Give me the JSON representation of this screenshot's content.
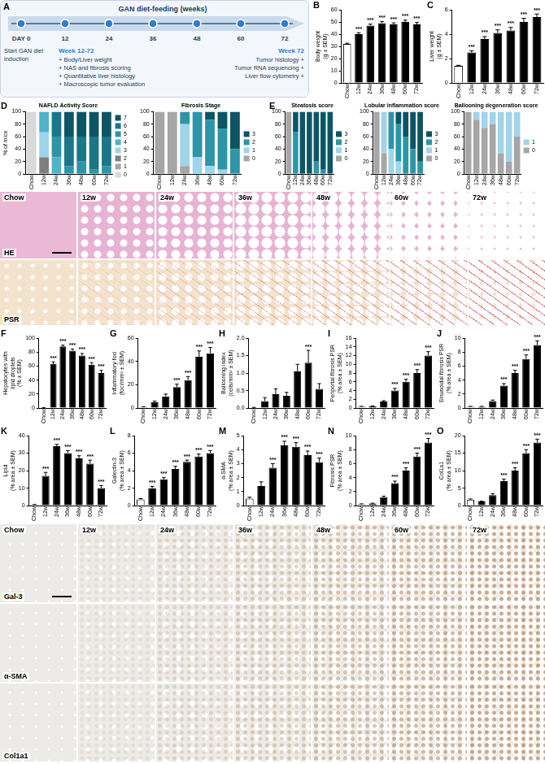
{
  "chart_data": [
    {
      "panel": "B",
      "type": "bar",
      "y_label": [
        "Body weight",
        "(g ± SEM)"
      ],
      "categories": [
        "Chow",
        "12w",
        "24w",
        "36w",
        "48w",
        "60w",
        "72w"
      ],
      "values": [
        32,
        40,
        47,
        49,
        48,
        50,
        48
      ],
      "errors": [
        0.6,
        1.2,
        1.2,
        1.4,
        1.3,
        1.5,
        1.6
      ],
      "significance": [
        null,
        "***",
        "***",
        "***",
        "***",
        "***",
        "***"
      ],
      "colors": [
        "#ffffff",
        "#000000",
        "#000000",
        "#000000",
        "#000000",
        "#000000",
        "#000000"
      ],
      "ylim": [
        0,
        60
      ],
      "yticks": [
        0,
        10,
        20,
        30,
        40,
        50,
        60
      ],
      "grid": false
    },
    {
      "panel": "C",
      "type": "bar",
      "y_label": [
        "Liver weight",
        "(g ± SEM)"
      ],
      "categories": [
        "Chow",
        "12w",
        "24w",
        "36w",
        "48w",
        "60w",
        "72w"
      ],
      "values": [
        1.4,
        2.5,
        3.6,
        4.1,
        4.3,
        5.0,
        5.4
      ],
      "errors": [
        0.05,
        0.15,
        0.2,
        0.25,
        0.25,
        0.3,
        0.25
      ],
      "significance": [
        null,
        "***",
        "***",
        "***",
        "***",
        "***",
        "***"
      ],
      "colors": [
        "#ffffff",
        "#000000",
        "#000000",
        "#000000",
        "#000000",
        "#000000",
        "#000000"
      ],
      "ylim": [
        0,
        6
      ],
      "yticks": [
        0,
        2,
        4,
        6
      ],
      "grid": false
    },
    {
      "panel": "D",
      "type": "bar",
      "stacked": true,
      "title": "NAFLD Activity Score",
      "y_label": "% of mice",
      "legend": "right",
      "grid": false,
      "categories": [
        "Chow",
        "12w",
        "24w",
        "36w",
        "48w",
        "60w",
        "72w"
      ],
      "ylim": [
        0,
        100
      ],
      "yticks": [
        0,
        20,
        40,
        60,
        80,
        100
      ],
      "series": [
        {
          "name": "0",
          "color": "#d9d9d9",
          "values": [
            100,
            0,
            0,
            0,
            0,
            0,
            0
          ]
        },
        {
          "name": "1",
          "color": "#a6a6a6",
          "values": [
            0,
            0,
            0,
            0,
            0,
            0,
            0
          ]
        },
        {
          "name": "2",
          "color": "#7f7f7f",
          "values": [
            0,
            27,
            0,
            0,
            0,
            0,
            0
          ]
        },
        {
          "name": "3",
          "color": "#9fd4ea",
          "values": [
            0,
            40,
            0,
            0,
            0,
            0,
            0
          ]
        },
        {
          "name": "4",
          "color": "#4fb3c9",
          "values": [
            0,
            33,
            27,
            0,
            0,
            0,
            0
          ]
        },
        {
          "name": "5",
          "color": "#2d95a8",
          "values": [
            0,
            0,
            33,
            13,
            20,
            7,
            13
          ]
        },
        {
          "name": "6",
          "color": "#1a7688",
          "values": [
            0,
            0,
            40,
            47,
            40,
            53,
            47
          ]
        },
        {
          "name": "7",
          "color": "#0d5566",
          "values": [
            0,
            0,
            0,
            40,
            40,
            40,
            40
          ]
        }
      ]
    },
    {
      "type": "bar",
      "stacked": true,
      "title": "Fibrosis Stage",
      "legend": "right",
      "grid": false,
      "categories": [
        "Chow",
        "12w",
        "24w",
        "36w",
        "48w",
        "60w",
        "72w"
      ],
      "ylim": [
        0,
        100
      ],
      "yticks": [
        0,
        20,
        40,
        60,
        80,
        100
      ],
      "series": [
        {
          "name": "0",
          "color": "#a6a6a6",
          "values": [
            100,
            100,
            13,
            0,
            0,
            0,
            0
          ]
        },
        {
          "name": "1",
          "color": "#9fd4ea",
          "values": [
            0,
            0,
            67,
            27,
            13,
            7,
            0
          ]
        },
        {
          "name": "2",
          "color": "#2d95a8",
          "values": [
            0,
            0,
            20,
            73,
            74,
            66,
            40
          ]
        },
        {
          "name": "3",
          "color": "#0d5566",
          "values": [
            0,
            0,
            0,
            0,
            13,
            27,
            60
          ]
        }
      ]
    },
    {
      "panel": "E",
      "type": "bar",
      "stacked": true,
      "title": "Steatosis score",
      "legend": "right",
      "grid": false,
      "categories": [
        "Chow",
        "12w",
        "24w",
        "36w",
        "48w",
        "60w",
        "72w"
      ],
      "ylim": [
        0,
        100
      ],
      "yticks": [
        0,
        20,
        40,
        60,
        80,
        100
      ],
      "series": [
        {
          "name": "0",
          "color": "#a6a6a6",
          "values": [
            100,
            0,
            0,
            0,
            0,
            0,
            0
          ]
        },
        {
          "name": "1",
          "color": "#9fd4ea",
          "values": [
            0,
            0,
            0,
            0,
            0,
            0,
            0
          ]
        },
        {
          "name": "2",
          "color": "#2d95a8",
          "values": [
            0,
            67,
            0,
            0,
            20,
            7,
            0
          ]
        },
        {
          "name": "3",
          "color": "#0d5566",
          "values": [
            0,
            33,
            100,
            100,
            80,
            93,
            100
          ]
        }
      ]
    },
    {
      "type": "bar",
      "stacked": true,
      "title": "Lobular inflammation score",
      "legend": "right",
      "grid": false,
      "categories": [
        "Chow",
        "12w",
        "24w",
        "36w",
        "48w",
        "60w",
        "72w"
      ],
      "ylim": [
        0,
        100
      ],
      "yticks": [
        0,
        20,
        40,
        60,
        80,
        100
      ],
      "series": [
        {
          "name": "0",
          "color": "#a6a6a6",
          "values": [
            100,
            33,
            0,
            0,
            0,
            0,
            0
          ]
        },
        {
          "name": "1",
          "color": "#9fd4ea",
          "values": [
            0,
            67,
            40,
            20,
            0,
            0,
            0
          ]
        },
        {
          "name": "2",
          "color": "#2d95a8",
          "values": [
            0,
            0,
            60,
            60,
            60,
            40,
            20
          ]
        },
        {
          "name": "3",
          "color": "#0d5566",
          "values": [
            0,
            0,
            0,
            20,
            40,
            60,
            80
          ]
        }
      ]
    },
    {
      "type": "bar",
      "stacked": true,
      "title": "Ballooning degeneration score",
      "legend": "right",
      "grid": false,
      "categories": [
        "Chow",
        "12w",
        "24w",
        "36w",
        "48w",
        "60w",
        "72w"
      ],
      "ylim": [
        0,
        100
      ],
      "yticks": [
        0,
        20,
        40,
        60,
        80,
        100
      ],
      "series": [
        {
          "name": "0",
          "color": "#a6a6a6",
          "values": [
            100,
            87,
            73,
            80,
            33,
            20,
            60
          ]
        },
        {
          "name": "1",
          "color": "#9fd4ea",
          "values": [
            0,
            13,
            27,
            20,
            67,
            80,
            40
          ]
        }
      ]
    },
    {
      "panel": "F",
      "type": "bar",
      "y_label": [
        "Hepatocytes with",
        "lipid droplets",
        "(% ± SEM)"
      ],
      "categories": [
        "Chow",
        "12w",
        "24w",
        "36w",
        "48w",
        "60w",
        "72w"
      ],
      "values": [
        0.5,
        63,
        88,
        82,
        75,
        62,
        50
      ],
      "errors": [
        0.3,
        3,
        2,
        2.5,
        3,
        3,
        4
      ],
      "significance": [
        null,
        "***",
        "***",
        "***",
        "***",
        "***",
        "***"
      ],
      "colors": [
        "#ffffff",
        "#000000",
        "#000000",
        "#000000",
        "#000000",
        "#000000",
        "#000000"
      ],
      "ylim": [
        0,
        100
      ],
      "yticks": [
        0,
        20,
        40,
        60,
        80,
        100
      ],
      "grid": false
    },
    {
      "panel": "G",
      "type": "bar",
      "y_label": [
        "Inflammatory foci",
        "(foci/mm² ± SEM)"
      ],
      "categories": [
        "Chow",
        "12w",
        "24w",
        "36w",
        "48w",
        "60w",
        "72w"
      ],
      "values": [
        1,
        5,
        10,
        18,
        24,
        44,
        47
      ],
      "errors": [
        0.3,
        1,
        2,
        2.5,
        3,
        5,
        5
      ],
      "significance": [
        null,
        null,
        null,
        "***",
        "***",
        "***",
        "***"
      ],
      "colors": [
        "#ffffff",
        "#000000",
        "#000000",
        "#000000",
        "#000000",
        "#000000",
        "#000000"
      ],
      "ylim": [
        0,
        60
      ],
      "yticks": [
        0,
        20,
        40,
        60
      ],
      "grid": false
    },
    {
      "panel": "H",
      "type": "bar",
      "y_label": [
        "Ballooning index",
        "(cells/mm² ± SEM)"
      ],
      "categories": [
        "Chow",
        "12w",
        "24w",
        "36w",
        "48w",
        "60w",
        "72w"
      ],
      "values": [
        0,
        0.2,
        0.4,
        0.35,
        1.05,
        1.3,
        0.55
      ],
      "errors": [
        0.02,
        0.1,
        0.15,
        0.1,
        0.2,
        0.35,
        0.15
      ],
      "significance": [
        null,
        null,
        null,
        null,
        null,
        "***",
        null
      ],
      "colors": [
        "#ffffff",
        "#000000",
        "#000000",
        "#000000",
        "#000000",
        "#000000",
        "#000000"
      ],
      "ylim": [
        0,
        2
      ],
      "yticks": [
        {
          "value": 0,
          "label": "0.0"
        },
        0.5,
        {
          "value": 1,
          "label": "1.0"
        },
        1.5,
        {
          "value": 2,
          "label": "2.0"
        }
      ],
      "grid": false
    },
    {
      "panel": "I",
      "type": "bar",
      "y_label": [
        "Periportal fibrosis PSR",
        "(% area ± SEM)"
      ],
      "categories": [
        "Chow",
        "12w",
        "24w",
        "36w",
        "48w",
        "60w",
        "72w"
      ],
      "values": [
        0.3,
        0.4,
        1.5,
        4,
        6,
        8,
        12
      ],
      "errors": [
        0.1,
        0.1,
        0.2,
        0.5,
        0.6,
        0.8,
        0.9
      ],
      "significance": [
        null,
        null,
        null,
        "***",
        "***",
        "***",
        "***"
      ],
      "colors": [
        "#ffffff",
        "#000000",
        "#000000",
        "#000000",
        "#000000",
        "#000000",
        "#000000"
      ],
      "ylim": [
        0,
        16
      ],
      "yticks": [
        0,
        2,
        4,
        6,
        8,
        10,
        12,
        14,
        16
      ],
      "grid": false
    },
    {
      "panel": "J",
      "type": "bar",
      "y_label": [
        "Sinusoidal fibrosis PSR",
        "(% area ± SEM)"
      ],
      "categories": [
        "Chow",
        "12w",
        "24w",
        "36w",
        "48w",
        "60w",
        "72w"
      ],
      "values": [
        0.2,
        0.2,
        1.0,
        3.2,
        5,
        7,
        9
      ],
      "errors": [
        0.05,
        0.05,
        0.15,
        0.3,
        0.4,
        0.6,
        0.6
      ],
      "significance": [
        null,
        null,
        null,
        "***",
        "***",
        "***",
        "***"
      ],
      "colors": [
        "#ffffff",
        "#000000",
        "#000000",
        "#000000",
        "#000000",
        "#000000",
        "#000000"
      ],
      "ylim": [
        0,
        10
      ],
      "yticks": [
        0,
        2,
        4,
        6,
        8,
        10
      ],
      "grid": false
    },
    {
      "panel": "K",
      "type": "bar",
      "y_label": [
        "Lipid",
        "(% area ± SEM)"
      ],
      "categories": [
        "Chow",
        "12w",
        "24w",
        "36w",
        "48w",
        "60w",
        "72w"
      ],
      "values": [
        0.5,
        17,
        34,
        30,
        27,
        24,
        10
      ],
      "errors": [
        0.2,
        2,
        1,
        1.5,
        1.5,
        2,
        1.5
      ],
      "significance": [
        null,
        "***",
        "***",
        "***",
        "***",
        "***",
        "***"
      ],
      "colors": [
        "#ffffff",
        "#000000",
        "#000000",
        "#000000",
        "#000000",
        "#000000",
        "#000000"
      ],
      "ylim": [
        0,
        40
      ],
      "yticks": [
        0,
        10,
        20,
        30,
        40
      ],
      "grid": false
    },
    {
      "panel": "L",
      "type": "bar",
      "y_label": [
        "Galectin-3",
        "(% area ± SEM)"
      ],
      "categories": [
        "Chow",
        "12w",
        "24w",
        "36w",
        "48w",
        "60w",
        "72w"
      ],
      "values": [
        0.7,
        2.0,
        3.0,
        4.2,
        5.0,
        5.6,
        6.0
      ],
      "errors": [
        0.1,
        0.2,
        0.2,
        0.3,
        0.2,
        0.3,
        0.3
      ],
      "significance": [
        null,
        "***",
        "***",
        "***",
        "***",
        "***",
        "***"
      ],
      "colors": [
        "#ffffff",
        "#000000",
        "#000000",
        "#000000",
        "#000000",
        "#000000",
        "#000000"
      ],
      "ylim": [
        0,
        8
      ],
      "yticks": [
        0,
        2,
        4,
        6,
        8
      ],
      "grid": false
    },
    {
      "panel": "M",
      "type": "bar",
      "y_label": [
        "α-SMA",
        "(% area ± SEM)"
      ],
      "categories": [
        "Chow",
        "12w",
        "24w",
        "36w",
        "48w",
        "60w",
        "72w"
      ],
      "values": [
        0.5,
        1.4,
        2.7,
        4.3,
        4.2,
        3.6,
        3.1
      ],
      "errors": [
        0.1,
        0.3,
        0.3,
        0.3,
        0.3,
        0.3,
        0.3
      ],
      "significance": [
        null,
        null,
        "***",
        "***",
        "***",
        "***",
        "***"
      ],
      "colors": [
        "#ffffff",
        "#000000",
        "#000000",
        "#000000",
        "#000000",
        "#000000",
        "#000000"
      ],
      "ylim": [
        0,
        5
      ],
      "yticks": [
        0,
        1,
        2,
        3,
        4,
        5
      ],
      "grid": false
    },
    {
      "panel": "N",
      "type": "bar",
      "y_label": [
        "Fibrosis PSR",
        "(% area ± SEM)"
      ],
      "categories": [
        "Chow",
        "12w",
        "24w",
        "36w",
        "48w",
        "60w",
        "72w"
      ],
      "values": [
        0.2,
        0.3,
        1.2,
        3.2,
        5,
        7,
        9
      ],
      "errors": [
        0.05,
        0.05,
        0.15,
        0.3,
        0.4,
        0.5,
        0.6
      ],
      "significance": [
        null,
        null,
        null,
        "***",
        "***",
        "***",
        "***"
      ],
      "colors": [
        "#ffffff",
        "#000000",
        "#000000",
        "#000000",
        "#000000",
        "#000000",
        "#000000"
      ],
      "ylim": [
        0,
        10
      ],
      "yticks": [
        0,
        2,
        4,
        6,
        8,
        10
      ],
      "grid": false
    },
    {
      "panel": "O",
      "type": "bar",
      "y_label": [
        "Col1a1",
        "(% area ± SEM)"
      ],
      "categories": [
        "Chow",
        "12w",
        "24w",
        "36w",
        "48w",
        "60w",
        "72w"
      ],
      "values": [
        1.7,
        1.2,
        3,
        7,
        10,
        15,
        18
      ],
      "errors": [
        0.2,
        0.1,
        0.4,
        0.6,
        0.8,
        1,
        1
      ],
      "significance": [
        null,
        null,
        null,
        "***",
        "***",
        "***",
        "***"
      ],
      "colors": [
        "#ffffff",
        "#000000",
        "#000000",
        "#000000",
        "#000000",
        "#000000",
        "#000000"
      ],
      "ylim": [
        0,
        20
      ],
      "yticks": [
        0,
        5,
        10,
        15,
        20
      ],
      "grid": false
    }
  ],
  "timeline": {
    "panel": "A",
    "title": "GAN diet-feeding (weeks)",
    "points": [
      "DAY 0",
      "12",
      "24",
      "36",
      "48",
      "60",
      "72"
    ],
    "start": [
      "Start GAN diet",
      "induction"
    ],
    "middle": {
      "heading": "Week 12-72",
      "items": [
        "+ Body/Liver weight",
        "+ NAS and fibrosis scoring",
        "+ Quantitative liver histology",
        "+ Macroscopic tumor evaluation"
      ]
    },
    "end": {
      "heading": "Week 72",
      "items": [
        "Tumor histology +",
        "Tumor RNA sequencing +",
        "Liver flow cytometry +"
      ]
    }
  },
  "image_panels": [
    {
      "columns": [
        "Chow",
        "12w",
        "24w",
        "36w",
        "48w",
        "60w",
        "72w"
      ],
      "rows": [
        "HE",
        "PSR"
      ]
    },
    {
      "columns": [
        "Chow",
        "12w",
        "24w",
        "36w",
        "48w",
        "60w",
        "72w"
      ],
      "rows": [
        "Gal-3",
        "α-SMA",
        "Col1a1"
      ]
    }
  ]
}
